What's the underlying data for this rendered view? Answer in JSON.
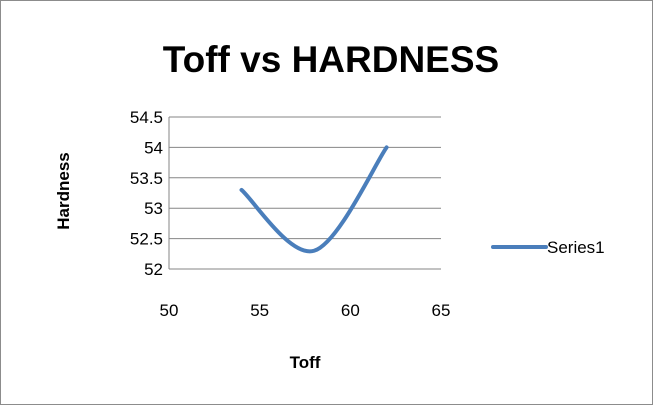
{
  "chart_data": {
    "type": "line",
    "title": "Toff vs HARDNESS",
    "xlabel": "Toff",
    "ylabel": "Hardness",
    "xlim": [
      50,
      65
    ],
    "ylim": [
      52,
      54.5
    ],
    "x_ticks": [
      "50",
      "55",
      "60",
      "65"
    ],
    "y_ticks": [
      "54.5",
      "54",
      "53.5",
      "53",
      "52.5",
      "52"
    ],
    "grid": "horizontal",
    "legend_position": "right",
    "series": [
      {
        "name": "Series1",
        "color": "#4a7ebb",
        "smooth": true,
        "points": [
          {
            "x": 54,
            "y": 53.3
          },
          {
            "x": 58,
            "y": 52.3
          },
          {
            "x": 62,
            "y": 54
          }
        ]
      }
    ]
  }
}
